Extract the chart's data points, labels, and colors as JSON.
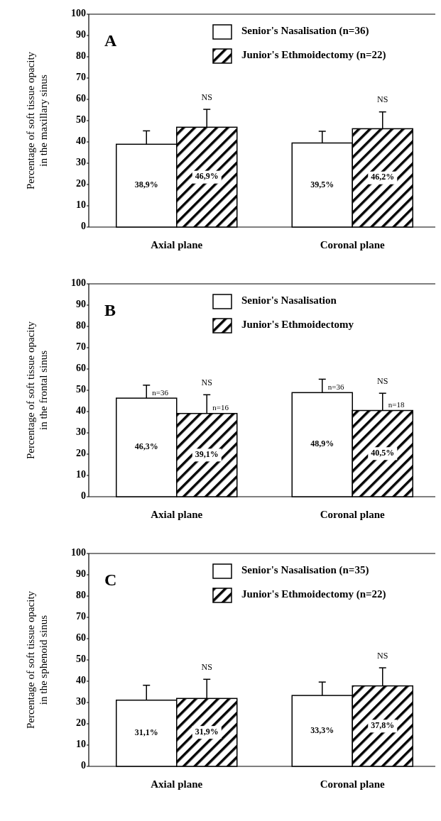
{
  "chart_data": [
    {
      "type": "bar",
      "ylabel": "Percentage of soft tissue opacity\nin the maxillary sinus",
      "categories": [
        "Axial plane",
        "Coronal plane"
      ],
      "ylim": [
        0,
        100
      ],
      "yticks": [
        0,
        10,
        20,
        30,
        40,
        50,
        60,
        70,
        80,
        90,
        100
      ],
      "legend": "top right",
      "grid": false,
      "series": [
        {
          "name": "Senior's Nasalisation (n=36)",
          "color": "#ffffff",
          "values": [
            38.9,
            39.5
          ],
          "errors": [
            [
              38.9,
              45.2
            ],
            [
              39.5,
              45
            ]
          ],
          "value_labels": [
            "38,9%",
            "39,5%"
          ]
        },
        {
          "name": "Junior's Ethmoidectomy (n=22)",
          "color": "#000000",
          "values": [
            46.9,
            46.2
          ],
          "errors": [
            [
              46.9,
              55.3
            ],
            [
              46.2,
              54.1
            ]
          ],
          "value_labels": [
            "46,9%",
            "46,2%"
          ]
        }
      ],
      "annotations": [
        "A",
        "NS",
        "NS"
      ]
    },
    {
      "type": "bar",
      "ylabel": "Percentage of soft tissue opacity\nin the frontal sinus",
      "categories": [
        "Axial plane",
        "Coronal plane"
      ],
      "ylim": [
        0,
        100
      ],
      "yticks": [
        0,
        10,
        20,
        30,
        40,
        50,
        60,
        70,
        80,
        90,
        100
      ],
      "legend": "top right",
      "grid": false,
      "series": [
        {
          "name": "Senior's Nasalisation",
          "color": "#ffffff",
          "values": [
            46.3,
            48.9
          ],
          "errors": [
            [
              46.3,
              52.4
            ],
            [
              48.9,
              55.2
            ]
          ],
          "value_labels": [
            "46,3%",
            "48,9%"
          ]
        },
        {
          "name": "Junior's Ethmoidectomy",
          "color": "#000000",
          "values": [
            39.1,
            40.5
          ],
          "errors": [
            [
              39.1,
              47.9
            ],
            [
              40.5,
              48.6
            ]
          ],
          "value_labels": [
            "39,1%",
            "40,5%"
          ]
        }
      ],
      "annotations": [
        "B",
        "NS",
        "NS",
        "n=36",
        "n=16",
        "n=36",
        "n=18"
      ]
    },
    {
      "type": "bar",
      "ylabel": "Percentage of soft tissue opacity\nin the sphenoid sinus",
      "categories": [
        "Axial plane",
        "Coronal plane"
      ],
      "ylim": [
        0,
        100
      ],
      "yticks": [
        0,
        10,
        20,
        30,
        40,
        50,
        60,
        70,
        80,
        90,
        100
      ],
      "legend": "top right",
      "grid": false,
      "series": [
        {
          "name": "Senior's Nasalisation (n=35)",
          "color": "#ffffff",
          "values": [
            31.1,
            33.3
          ],
          "errors": [
            [
              31.1,
              38.1
            ],
            [
              33.3,
              39.6
            ]
          ],
          "value_labels": [
            "31,1%",
            "33,3%"
          ]
        },
        {
          "name": "Junior's Ethmoidectomy (n=22)",
          "color": "#000000",
          "values": [
            31.9,
            37.8
          ],
          "errors": [
            [
              31.9,
              40.9
            ],
            [
              37.8,
              46.3
            ]
          ],
          "value_labels": [
            "31,9%",
            "37,8%"
          ]
        }
      ],
      "annotations": [
        "C",
        "NS",
        "NS"
      ]
    }
  ]
}
